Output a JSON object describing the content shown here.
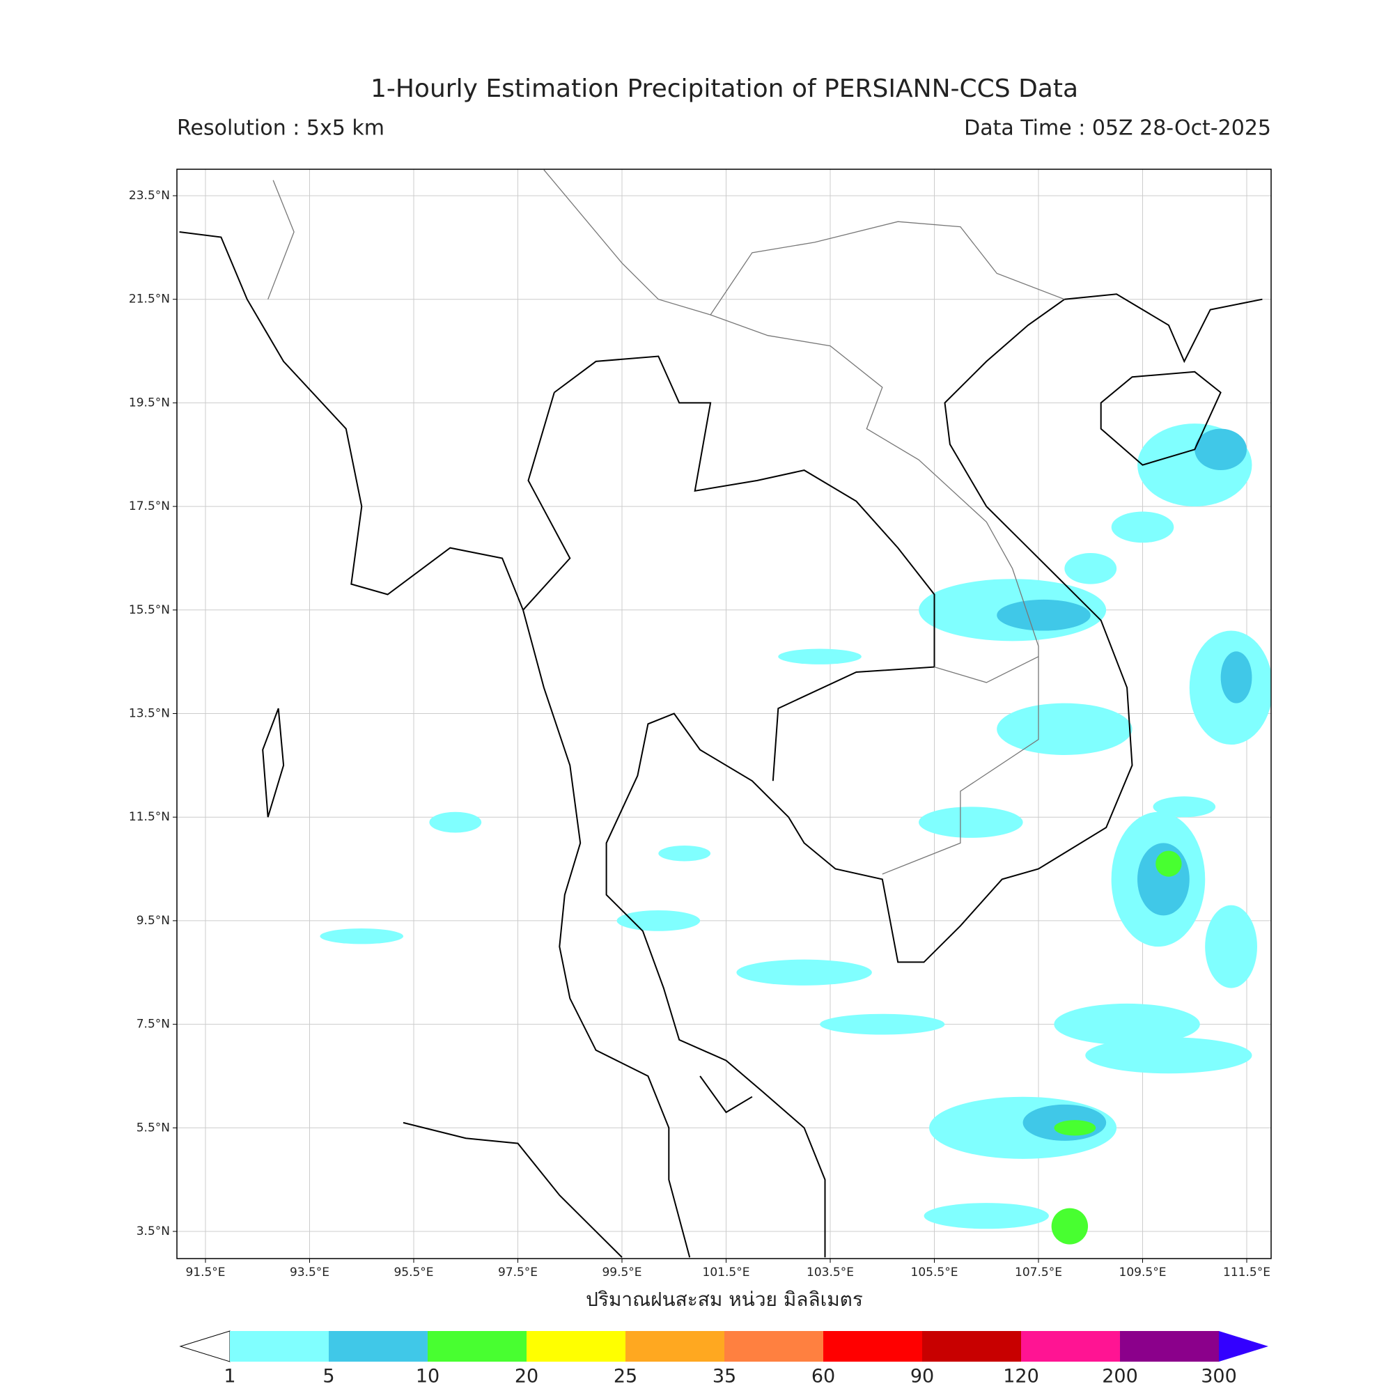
{
  "header": {
    "title": "1-Hourly Estimation Precipitation of PERSIANN-CCS Data",
    "resolution": "Resolution : 5x5 km",
    "data_time": "Data Time : 05Z 28-Oct-2025"
  },
  "map": {
    "lat_ticks": [
      {
        "value": 23.5,
        "label": "23.5°N"
      },
      {
        "value": 21.5,
        "label": "21.5°N"
      },
      {
        "value": 19.5,
        "label": "19.5°N"
      },
      {
        "value": 17.5,
        "label": "17.5°N"
      },
      {
        "value": 15.5,
        "label": "15.5°N"
      },
      {
        "value": 13.5,
        "label": "13.5°N"
      },
      {
        "value": 11.5,
        "label": "11.5°N"
      },
      {
        "value": 9.5,
        "label": "9.5°N"
      },
      {
        "value": 7.5,
        "label": "7.5°N"
      },
      {
        "value": 5.5,
        "label": "5.5°N"
      },
      {
        "value": 3.5,
        "label": "3.5°N"
      }
    ],
    "lon_ticks": [
      {
        "value": 91.5,
        "label": "91.5°E"
      },
      {
        "value": 93.5,
        "label": "93.5°E"
      },
      {
        "value": 95.5,
        "label": "95.5°E"
      },
      {
        "value": 97.5,
        "label": "97.5°E"
      },
      {
        "value": 99.5,
        "label": "99.5°E"
      },
      {
        "value": 101.5,
        "label": "101.5°E"
      },
      {
        "value": 103.5,
        "label": "103.5°E"
      },
      {
        "value": 105.5,
        "label": "105.5°E"
      },
      {
        "value": 107.5,
        "label": "107.5°E"
      },
      {
        "value": 109.5,
        "label": "109.5°E"
      },
      {
        "value": 111.5,
        "label": "111.5°E"
      }
    ],
    "grid": true
  },
  "colorbar": {
    "label": "ปริมาณฝนสะสม หน่วย มิลลิเมตร",
    "levels": [
      1,
      5,
      10,
      20,
      25,
      35,
      60,
      90,
      120,
      200,
      300
    ],
    "colors": [
      "#80ffff",
      "#40c8e8",
      "#48ff30",
      "#ffff00",
      "#ffa820",
      "#ff8040",
      "#ff0000",
      "#c80000",
      "#ff1493",
      "#8b008b"
    ],
    "under_color": "#ffffff",
    "over_color": "#3300ff"
  }
}
